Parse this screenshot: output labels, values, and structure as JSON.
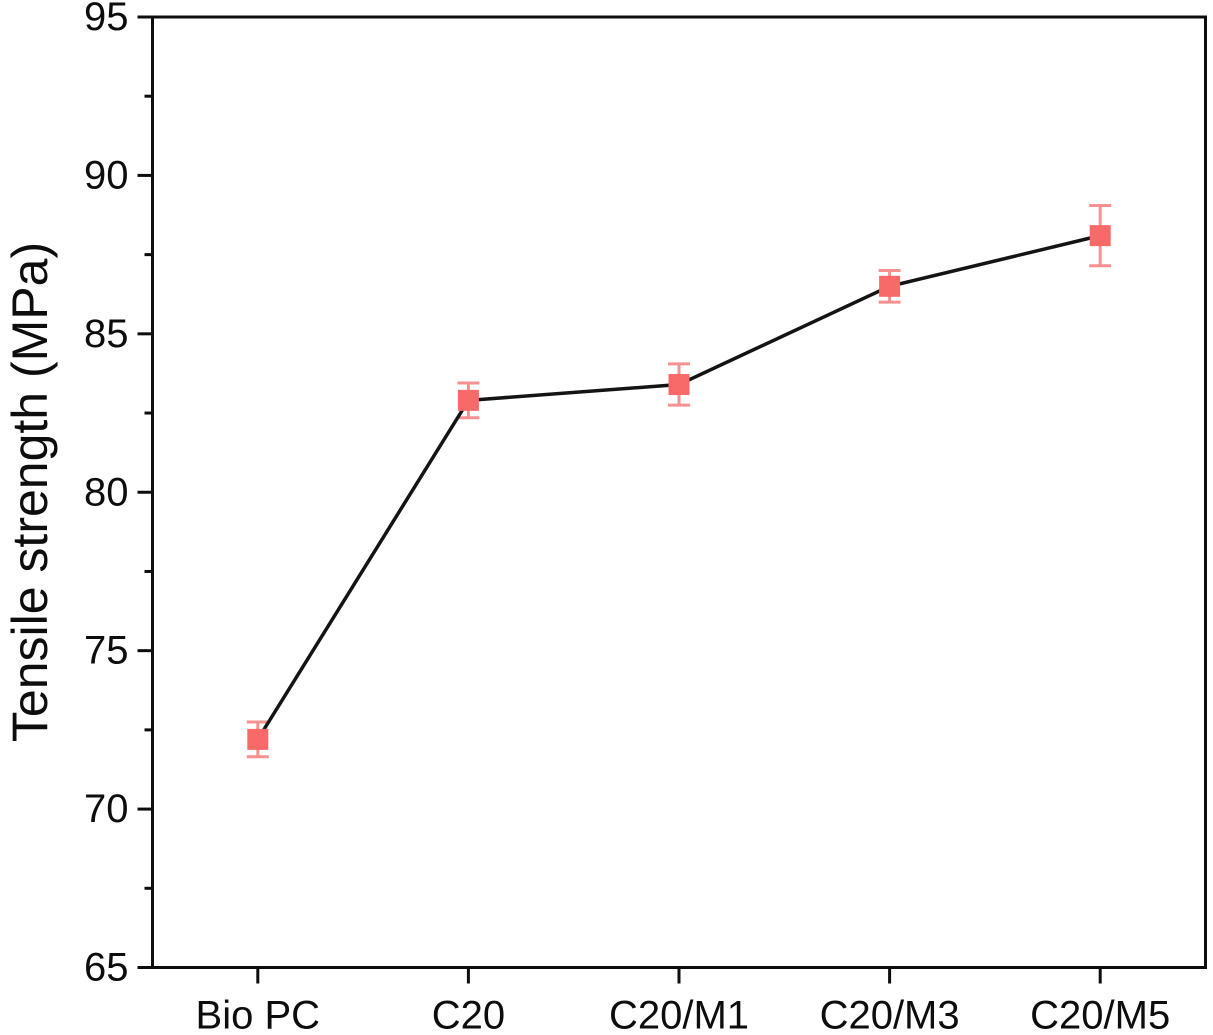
{
  "chart_data": {
    "type": "line",
    "title": "",
    "categories": [
      "Bio PC",
      "C20",
      "C20/M1",
      "C20/M3",
      "C20/M5"
    ],
    "series": [
      {
        "name": "Tensile strength",
        "values": [
          72.2,
          82.9,
          83.4,
          86.5,
          88.1
        ],
        "errors": [
          0.55,
          0.55,
          0.65,
          0.5,
          0.95
        ]
      }
    ],
    "xlabel": "",
    "ylabel": "Tensile strength (MPa)",
    "ylim": [
      65,
      95
    ],
    "ytick_step": 5,
    "yminor_step": 2.5,
    "yticks": [
      65,
      70,
      75,
      80,
      85,
      90,
      95
    ],
    "grid": false,
    "legend_position": "none",
    "marker_shape": "square",
    "colors": {
      "background": "#ffffff",
      "axis": "#0d0d0d",
      "text": "#0d0d0d",
      "line": "#141414",
      "marker_fill": "#f86a6a",
      "error_bar": "#f79090"
    }
  }
}
